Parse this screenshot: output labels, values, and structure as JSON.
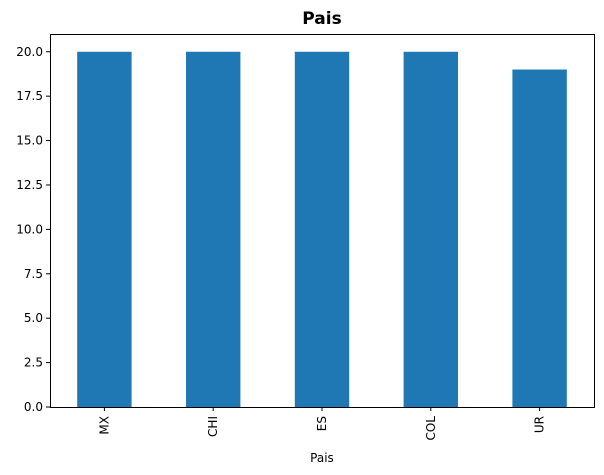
{
  "chart_data": {
    "type": "bar",
    "title": "Pais",
    "xlabel": "Pais",
    "ylabel": "",
    "categories": [
      "MX",
      "CHI",
      "ES",
      "COL",
      "UR"
    ],
    "values": [
      20,
      20,
      20,
      20,
      19
    ],
    "ylim": [
      0,
      21
    ],
    "yticks": [
      "0.0",
      "2.5",
      "5.0",
      "7.5",
      "10.0",
      "12.5",
      "15.0",
      "17.5",
      "20.0"
    ],
    "ytick_values": [
      0,
      2.5,
      5,
      7.5,
      10,
      12.5,
      15,
      17.5,
      20
    ],
    "grid": false,
    "legend": "none",
    "bar_color": "#1f77b4",
    "x_tick_rotation": "vertical"
  }
}
